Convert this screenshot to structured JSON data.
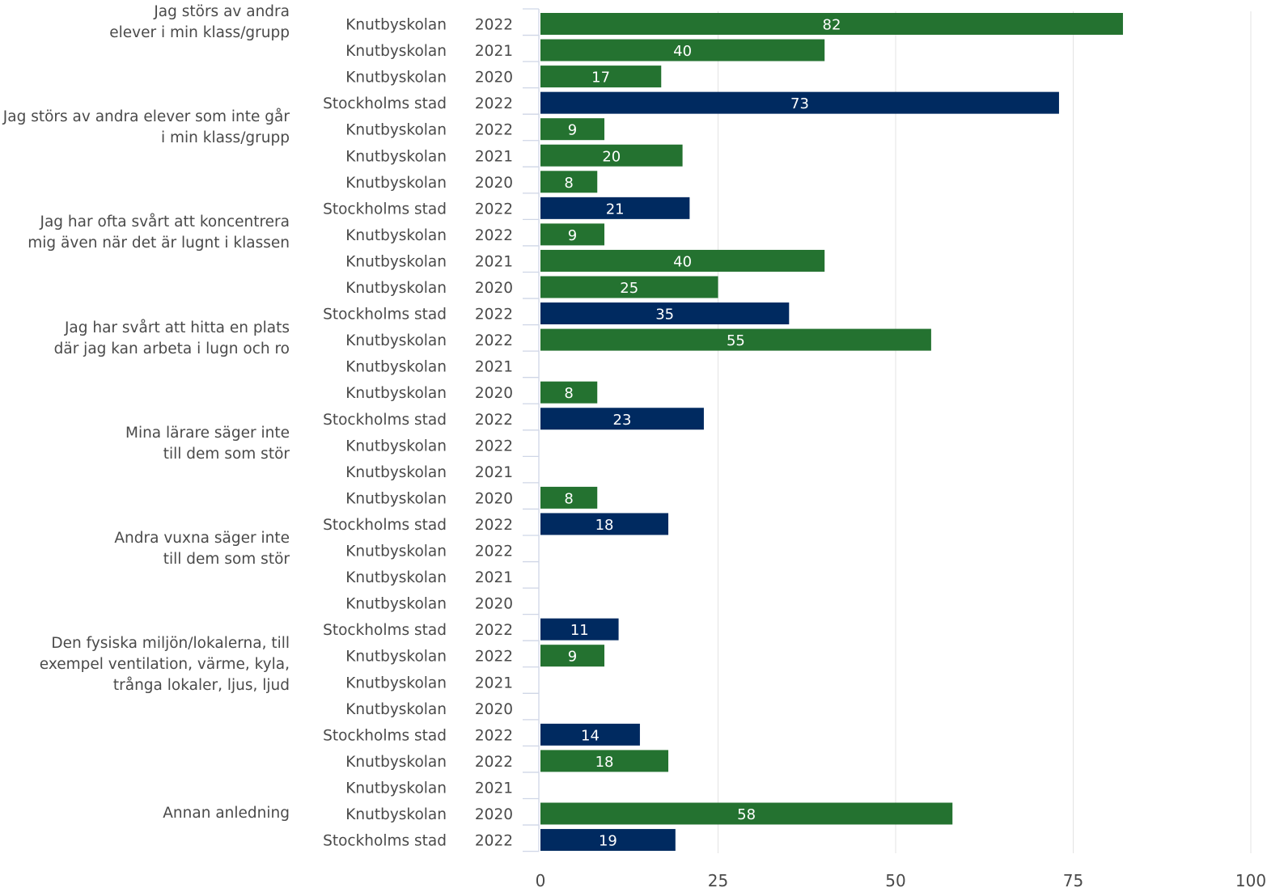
{
  "chart_data": {
    "type": "bar",
    "orientation": "horizontal",
    "xlim": [
      0,
      100
    ],
    "x_ticks": [
      "0",
      "25",
      "50",
      "75",
      "100"
    ],
    "grid": true,
    "colors": {
      "Knutbyskolan": "#247230",
      "Stockholms stad": "#002a60"
    },
    "groups": [
      {
        "lines": [
          "Jag störs av andra",
          "elever i min klass/grupp"
        ],
        "rows": [
          {
            "unit": "Knutbyskolan",
            "year": "2022",
            "value": 82
          },
          {
            "unit": "Knutbyskolan",
            "year": "2021",
            "value": 40
          },
          {
            "unit": "Knutbyskolan",
            "year": "2020",
            "value": 17
          },
          {
            "unit": "Stockholms stad",
            "year": "2022",
            "value": 73
          }
        ]
      },
      {
        "lines": [
          "Jag störs av andra elever som inte går",
          "i min klass/grupp"
        ],
        "rows": [
          {
            "unit": "Knutbyskolan",
            "year": "2022",
            "value": 9
          },
          {
            "unit": "Knutbyskolan",
            "year": "2021",
            "value": 20
          },
          {
            "unit": "Knutbyskolan",
            "year": "2020",
            "value": 8
          },
          {
            "unit": "Stockholms stad",
            "year": "2022",
            "value": 21
          }
        ]
      },
      {
        "lines": [
          "Jag har ofta svårt att koncentrera",
          "mig även när det är lugnt i klassen"
        ],
        "rows": [
          {
            "unit": "Knutbyskolan",
            "year": "2022",
            "value": 9
          },
          {
            "unit": "Knutbyskolan",
            "year": "2021",
            "value": 40
          },
          {
            "unit": "Knutbyskolan",
            "year": "2020",
            "value": 25
          },
          {
            "unit": "Stockholms stad",
            "year": "2022",
            "value": 35
          }
        ]
      },
      {
        "lines": [
          "Jag har svårt att hitta en plats",
          "där jag kan arbeta i lugn och ro"
        ],
        "rows": [
          {
            "unit": "Knutbyskolan",
            "year": "2022",
            "value": 55
          },
          {
            "unit": "Knutbyskolan",
            "year": "2021",
            "value": null
          },
          {
            "unit": "Knutbyskolan",
            "year": "2020",
            "value": 8
          },
          {
            "unit": "Stockholms stad",
            "year": "2022",
            "value": 23
          }
        ]
      },
      {
        "lines": [
          "Mina lärare säger inte",
          "till dem som stör"
        ],
        "rows": [
          {
            "unit": "Knutbyskolan",
            "year": "2022",
            "value": null
          },
          {
            "unit": "Knutbyskolan",
            "year": "2021",
            "value": null
          },
          {
            "unit": "Knutbyskolan",
            "year": "2020",
            "value": 8
          },
          {
            "unit": "Stockholms stad",
            "year": "2022",
            "value": 18
          }
        ]
      },
      {
        "lines": [
          "Andra vuxna säger inte",
          "till dem som stör"
        ],
        "rows": [
          {
            "unit": "Knutbyskolan",
            "year": "2022",
            "value": null
          },
          {
            "unit": "Knutbyskolan",
            "year": "2021",
            "value": null
          },
          {
            "unit": "Knutbyskolan",
            "year": "2020",
            "value": null
          },
          {
            "unit": "Stockholms stad",
            "year": "2022",
            "value": 11
          }
        ]
      },
      {
        "lines": [
          "Den fysiska miljön/lokalerna, till",
          "exempel ventilation, värme, kyla,",
          "trånga lokaler, ljus, ljud"
        ],
        "rows": [
          {
            "unit": "Knutbyskolan",
            "year": "2022",
            "value": 9
          },
          {
            "unit": "Knutbyskolan",
            "year": "2021",
            "value": null
          },
          {
            "unit": "Knutbyskolan",
            "year": "2020",
            "value": null
          },
          {
            "unit": "Stockholms stad",
            "year": "2022",
            "value": 14
          }
        ]
      },
      {
        "lines": [
          "Annan anledning"
        ],
        "rows": [
          {
            "unit": "Knutbyskolan",
            "year": "2022",
            "value": 18
          },
          {
            "unit": "Knutbyskolan",
            "year": "2021",
            "value": null
          },
          {
            "unit": "Knutbyskolan",
            "year": "2020",
            "value": 58
          },
          {
            "unit": "Stockholms stad",
            "year": "2022",
            "value": 19
          }
        ]
      }
    ]
  }
}
